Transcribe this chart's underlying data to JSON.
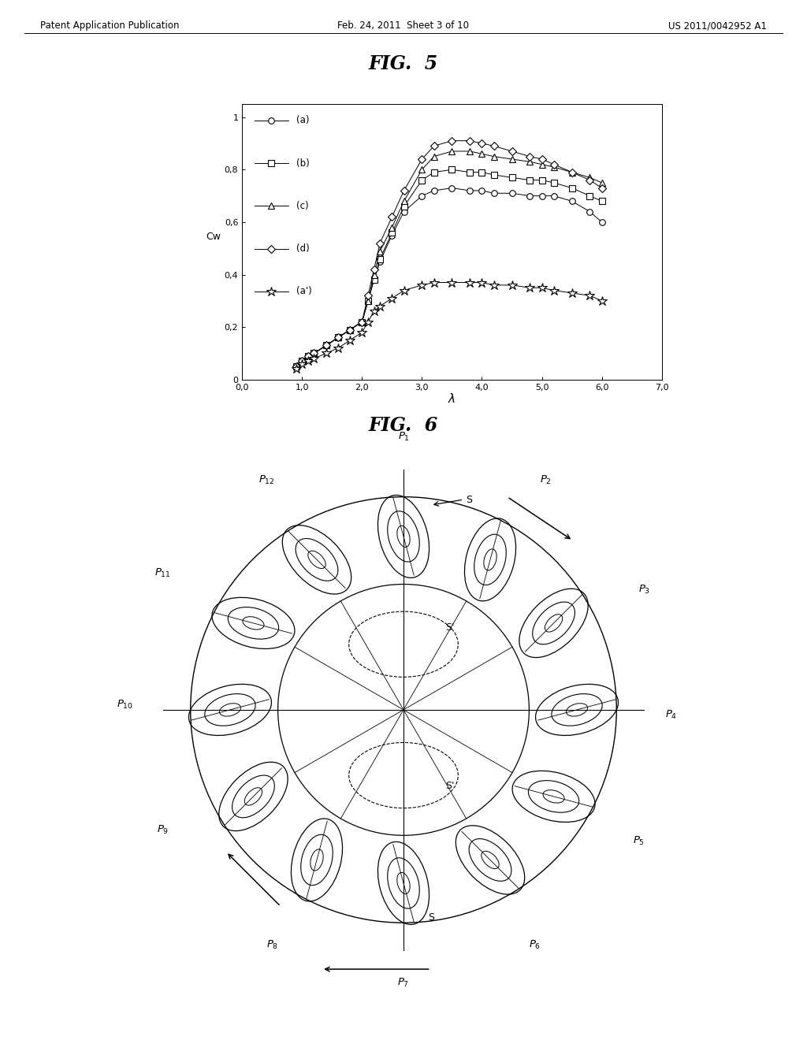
{
  "header_left": "Patent Application Publication",
  "header_mid": "Feb. 24, 2011  Sheet 3 of 10",
  "header_right": "US 2011/0042952 A1",
  "fig5_title": "FIG.  5",
  "fig6_title": "FIG.  6",
  "fig5": {
    "series_a": {
      "label": "(a)",
      "marker": "o",
      "x": [
        0.9,
        1.0,
        1.1,
        1.2,
        1.4,
        1.6,
        1.8,
        2.0,
        2.1,
        2.2,
        2.3,
        2.5,
        2.7,
        3.0,
        3.2,
        3.5,
        3.8,
        4.0,
        4.2,
        4.5,
        4.8,
        5.0,
        5.2,
        5.5,
        5.8,
        6.0
      ],
      "y": [
        0.05,
        0.07,
        0.09,
        0.1,
        0.13,
        0.16,
        0.19,
        0.22,
        0.3,
        0.38,
        0.45,
        0.55,
        0.64,
        0.7,
        0.72,
        0.73,
        0.72,
        0.72,
        0.71,
        0.71,
        0.7,
        0.7,
        0.7,
        0.68,
        0.64,
        0.6
      ]
    },
    "series_b": {
      "label": "(b)",
      "marker": "s",
      "x": [
        0.9,
        1.0,
        1.1,
        1.2,
        1.4,
        1.6,
        1.8,
        2.0,
        2.1,
        2.2,
        2.3,
        2.5,
        2.7,
        3.0,
        3.2,
        3.5,
        3.8,
        4.0,
        4.2,
        4.5,
        4.8,
        5.0,
        5.2,
        5.5,
        5.8,
        6.0
      ],
      "y": [
        0.05,
        0.07,
        0.09,
        0.1,
        0.13,
        0.16,
        0.19,
        0.22,
        0.3,
        0.38,
        0.46,
        0.56,
        0.66,
        0.76,
        0.79,
        0.8,
        0.79,
        0.79,
        0.78,
        0.77,
        0.76,
        0.76,
        0.75,
        0.73,
        0.7,
        0.68
      ]
    },
    "series_c": {
      "label": "(c)",
      "marker": "^",
      "x": [
        0.9,
        1.0,
        1.1,
        1.2,
        1.4,
        1.6,
        1.8,
        2.0,
        2.1,
        2.2,
        2.3,
        2.5,
        2.7,
        3.0,
        3.2,
        3.5,
        3.8,
        4.0,
        4.2,
        4.5,
        4.8,
        5.0,
        5.2,
        5.5,
        5.8,
        6.0
      ],
      "y": [
        0.05,
        0.07,
        0.09,
        0.1,
        0.13,
        0.16,
        0.19,
        0.22,
        0.3,
        0.4,
        0.49,
        0.58,
        0.68,
        0.8,
        0.85,
        0.87,
        0.87,
        0.86,
        0.85,
        0.84,
        0.83,
        0.82,
        0.81,
        0.79,
        0.77,
        0.75
      ]
    },
    "series_d": {
      "label": "(d)",
      "marker": "D",
      "x": [
        0.9,
        1.0,
        1.1,
        1.2,
        1.4,
        1.6,
        1.8,
        2.0,
        2.1,
        2.2,
        2.3,
        2.5,
        2.7,
        3.0,
        3.2,
        3.5,
        3.8,
        4.0,
        4.2,
        4.5,
        4.8,
        5.0,
        5.2,
        5.5,
        5.8,
        6.0
      ],
      "y": [
        0.05,
        0.07,
        0.09,
        0.1,
        0.13,
        0.16,
        0.19,
        0.22,
        0.32,
        0.42,
        0.52,
        0.62,
        0.72,
        0.84,
        0.89,
        0.91,
        0.91,
        0.9,
        0.89,
        0.87,
        0.85,
        0.84,
        0.82,
        0.79,
        0.76,
        0.73
      ]
    },
    "series_ap": {
      "label": "(a')",
      "marker": "*",
      "x": [
        0.9,
        1.0,
        1.1,
        1.2,
        1.4,
        1.6,
        1.8,
        2.0,
        2.1,
        2.2,
        2.3,
        2.5,
        2.7,
        3.0,
        3.2,
        3.5,
        3.8,
        4.0,
        4.2,
        4.5,
        4.8,
        5.0,
        5.2,
        5.5,
        5.8,
        6.0
      ],
      "y": [
        0.04,
        0.06,
        0.07,
        0.08,
        0.1,
        0.12,
        0.15,
        0.18,
        0.22,
        0.26,
        0.28,
        0.31,
        0.34,
        0.36,
        0.37,
        0.37,
        0.37,
        0.37,
        0.36,
        0.36,
        0.35,
        0.35,
        0.34,
        0.33,
        0.32,
        0.3
      ]
    },
    "xlabel": "λ",
    "ylabel": "Cw",
    "xlim": [
      0.0,
      7.0
    ],
    "ylim": [
      0.0,
      1.05
    ],
    "xticks": [
      0.0,
      1.0,
      2.0,
      3.0,
      4.0,
      5.0,
      6.0,
      7.0
    ],
    "xtick_labels": [
      "0,0",
      "1,0",
      "2,0",
      "3,0",
      "4,0",
      "5,0",
      "6,0",
      "7,0"
    ],
    "yticks": [
      0.0,
      0.2,
      0.4,
      0.6,
      0.8,
      1.0
    ],
    "ytick_labels": [
      "0",
      "0,2",
      "0,4",
      "0,6",
      "0,8",
      "1"
    ]
  },
  "fig6": {
    "num_blades": 12,
    "blade_labels": [
      "P1",
      "P2",
      "P3",
      "P4",
      "P5",
      "P6",
      "P7",
      "P8",
      "P9",
      "P10",
      "P11",
      "P12"
    ]
  },
  "bg_color": "#ffffff",
  "line_color": "#000000"
}
